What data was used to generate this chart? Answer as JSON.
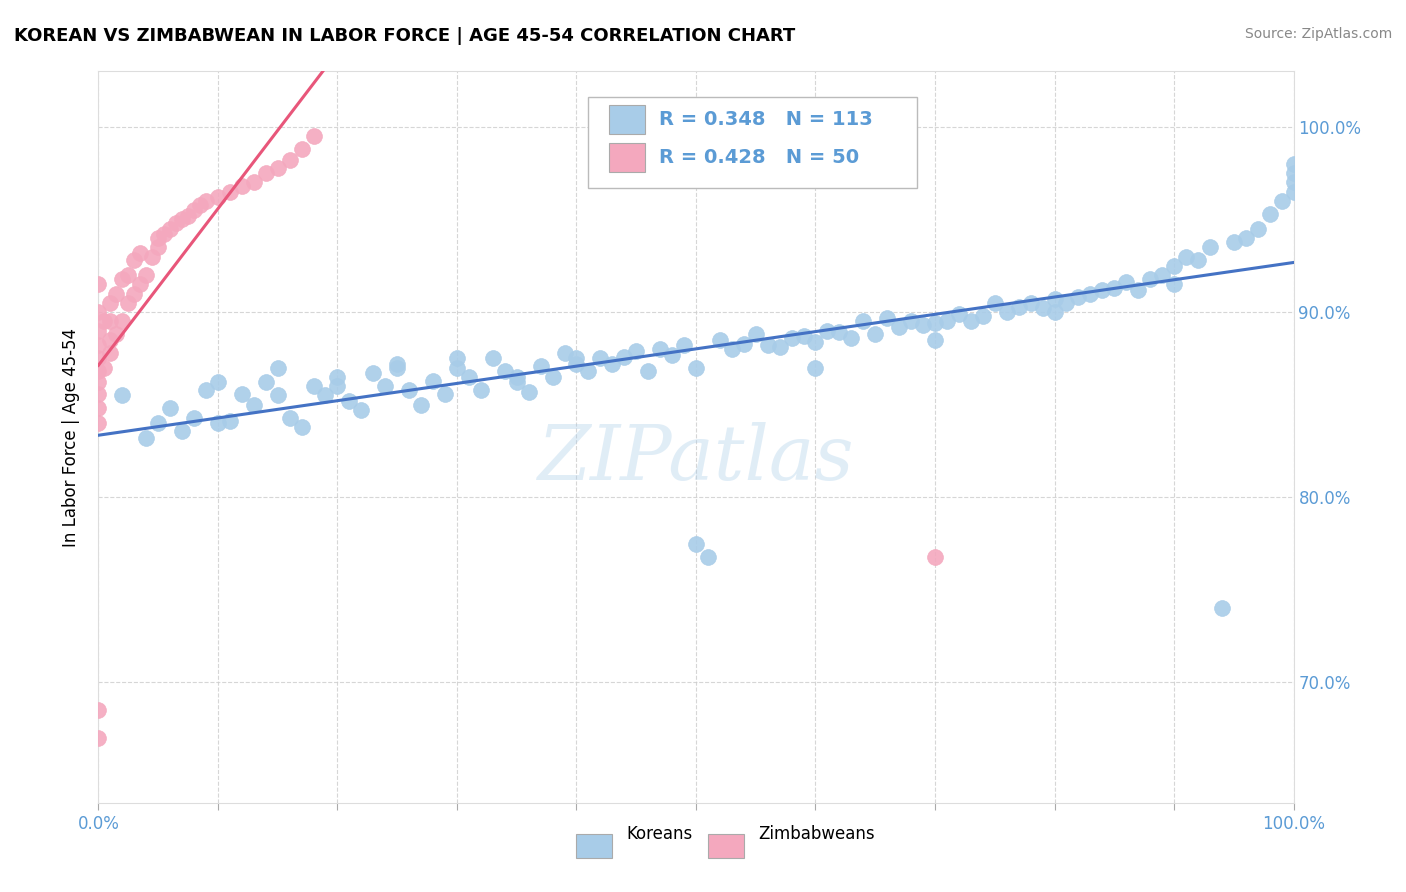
{
  "title": "KOREAN VS ZIMBABWEAN IN LABOR FORCE | AGE 45-54 CORRELATION CHART",
  "source": "Source: ZipAtlas.com",
  "ylabel": "In Labor Force | Age 45-54",
  "ytick_labels": [
    "70.0%",
    "80.0%",
    "90.0%",
    "100.0%"
  ],
  "ytick_values": [
    0.7,
    0.8,
    0.9,
    1.0
  ],
  "xlim": [
    0.0,
    1.0
  ],
  "ylim": [
    0.635,
    1.03
  ],
  "korean_R": 0.348,
  "korean_N": 113,
  "zimbabwean_R": 0.428,
  "zimbabwean_N": 50,
  "korean_color": "#A8CCE8",
  "zimbabwean_color": "#F4A8BE",
  "korean_line_color": "#4472C4",
  "zimbabwean_line_color": "#E8567A",
  "legend_label_korean": "Koreans",
  "legend_label_zimbabwean": "Zimbabweans",
  "watermark": "ZIPatlas",
  "background_color": "#FFFFFF",
  "grid_color": "#CCCCCC",
  "tick_color": "#5B9BD5",
  "title_fontsize": 13,
  "source_fontsize": 10,
  "axis_fontsize": 12,
  "legend_fontsize": 14,
  "watermark_fontsize": 55,
  "korean_scatter_x": [
    0.02,
    0.04,
    0.05,
    0.06,
    0.07,
    0.08,
    0.09,
    0.1,
    0.11,
    0.12,
    0.13,
    0.14,
    0.15,
    0.16,
    0.17,
    0.18,
    0.19,
    0.2,
    0.21,
    0.22,
    0.23,
    0.24,
    0.25,
    0.26,
    0.27,
    0.28,
    0.29,
    0.3,
    0.31,
    0.32,
    0.33,
    0.34,
    0.35,
    0.36,
    0.37,
    0.38,
    0.39,
    0.4,
    0.41,
    0.42,
    0.43,
    0.44,
    0.45,
    0.46,
    0.47,
    0.48,
    0.49,
    0.5,
    0.51,
    0.52,
    0.53,
    0.54,
    0.55,
    0.56,
    0.57,
    0.58,
    0.59,
    0.6,
    0.61,
    0.62,
    0.63,
    0.64,
    0.65,
    0.66,
    0.67,
    0.68,
    0.69,
    0.7,
    0.71,
    0.72,
    0.73,
    0.74,
    0.75,
    0.76,
    0.77,
    0.78,
    0.79,
    0.8,
    0.81,
    0.82,
    0.83,
    0.84,
    0.85,
    0.86,
    0.87,
    0.88,
    0.89,
    0.9,
    0.91,
    0.92,
    0.93,
    0.94,
    0.95,
    0.96,
    0.97,
    0.98,
    0.99,
    1.0,
    1.0,
    1.0,
    0.1,
    0.15,
    0.2,
    0.25,
    0.3,
    0.35,
    0.4,
    0.5,
    0.6,
    0.7,
    0.8,
    0.9,
    1.0
  ],
  "korean_scatter_y": [
    0.855,
    0.832,
    0.84,
    0.848,
    0.836,
    0.843,
    0.858,
    0.862,
    0.841,
    0.856,
    0.85,
    0.862,
    0.87,
    0.843,
    0.838,
    0.86,
    0.855,
    0.865,
    0.852,
    0.847,
    0.867,
    0.86,
    0.872,
    0.858,
    0.85,
    0.863,
    0.856,
    0.87,
    0.865,
    0.858,
    0.875,
    0.868,
    0.862,
    0.857,
    0.871,
    0.865,
    0.878,
    0.872,
    0.868,
    0.875,
    0.872,
    0.876,
    0.879,
    0.868,
    0.88,
    0.877,
    0.882,
    0.775,
    0.768,
    0.885,
    0.88,
    0.883,
    0.888,
    0.882,
    0.881,
    0.886,
    0.887,
    0.884,
    0.89,
    0.889,
    0.886,
    0.895,
    0.888,
    0.897,
    0.892,
    0.895,
    0.893,
    0.894,
    0.895,
    0.899,
    0.895,
    0.898,
    0.905,
    0.9,
    0.903,
    0.905,
    0.902,
    0.907,
    0.905,
    0.908,
    0.91,
    0.912,
    0.913,
    0.916,
    0.912,
    0.918,
    0.92,
    0.925,
    0.93,
    0.928,
    0.935,
    0.74,
    0.938,
    0.94,
    0.945,
    0.953,
    0.96,
    0.97,
    0.975,
    0.98,
    0.84,
    0.855,
    0.86,
    0.87,
    0.875,
    0.865,
    0.875,
    0.87,
    0.87,
    0.885,
    0.9,
    0.915,
    0.965
  ],
  "zimbabwean_scatter_x": [
    0.0,
    0.0,
    0.0,
    0.0,
    0.0,
    0.0,
    0.0,
    0.0,
    0.0,
    0.0,
    0.005,
    0.005,
    0.01,
    0.01,
    0.01,
    0.01,
    0.015,
    0.015,
    0.02,
    0.02,
    0.025,
    0.025,
    0.03,
    0.03,
    0.035,
    0.035,
    0.04,
    0.045,
    0.05,
    0.05,
    0.055,
    0.06,
    0.065,
    0.07,
    0.075,
    0.08,
    0.085,
    0.09,
    0.1,
    0.11,
    0.12,
    0.13,
    0.14,
    0.15,
    0.16,
    0.17,
    0.18,
    0.0,
    0.7,
    0.0
  ],
  "zimbabwean_scatter_y": [
    0.84,
    0.848,
    0.856,
    0.862,
    0.868,
    0.875,
    0.882,
    0.89,
    0.9,
    0.915,
    0.87,
    0.895,
    0.878,
    0.885,
    0.895,
    0.905,
    0.888,
    0.91,
    0.895,
    0.918,
    0.905,
    0.92,
    0.91,
    0.928,
    0.915,
    0.932,
    0.92,
    0.93,
    0.935,
    0.94,
    0.942,
    0.945,
    0.948,
    0.95,
    0.952,
    0.955,
    0.958,
    0.96,
    0.962,
    0.965,
    0.968,
    0.97,
    0.975,
    0.978,
    0.982,
    0.988,
    0.995,
    0.67,
    0.768,
    0.685
  ]
}
